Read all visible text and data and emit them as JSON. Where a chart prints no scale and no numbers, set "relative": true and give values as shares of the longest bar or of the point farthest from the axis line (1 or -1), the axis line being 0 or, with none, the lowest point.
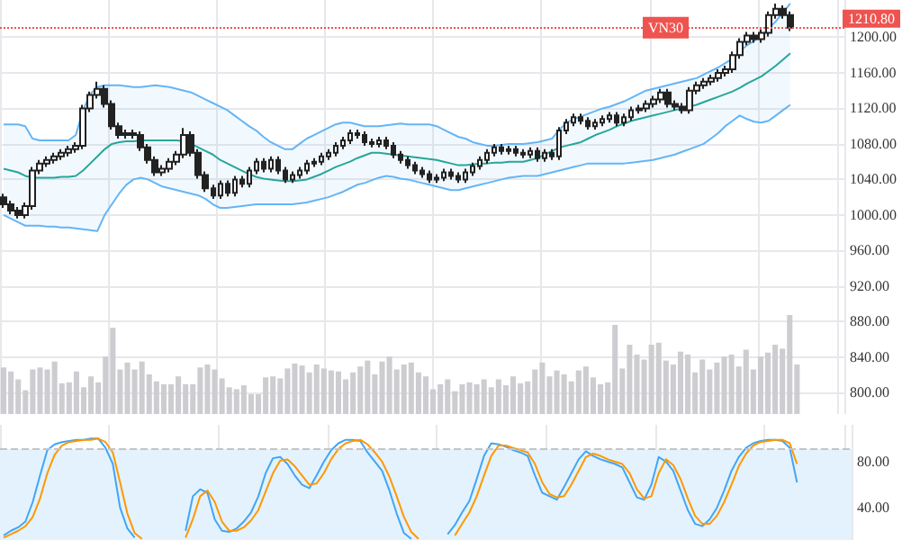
{
  "chart_data": [
    {
      "type": "candlestick",
      "categories": [
        null,
        null,
        null,
        null,
        null,
        null,
        null,
        null,
        null,
        null,
        null,
        null,
        null,
        null,
        null,
        null,
        null,
        null,
        null,
        null,
        null,
        null,
        null,
        null,
        null,
        null,
        null,
        null,
        null,
        null,
        null,
        null,
        null,
        null,
        null,
        null,
        null,
        null,
        null,
        null,
        null,
        null,
        null,
        null,
        null,
        null,
        null,
        null,
        null,
        null,
        null,
        null,
        null,
        null,
        null,
        null,
        null,
        null,
        null,
        null,
        null,
        null,
        null,
        null,
        null,
        null,
        null,
        null,
        null,
        null,
        null,
        null,
        null,
        null,
        null,
        null,
        null,
        null,
        null,
        null,
        null,
        null,
        null,
        null,
        null,
        null,
        null,
        null,
        null,
        null,
        null,
        null,
        null,
        null,
        null,
        null,
        null,
        null,
        null,
        null,
        null,
        null,
        null,
        null,
        null,
        null,
        null,
        null,
        null,
        null
      ],
      "ylim": [
        776,
        1242
      ],
      "yticks": [
        {
          "value": 800,
          "label": "800.00"
        },
        {
          "value": 840,
          "label": "840.00"
        },
        {
          "value": 880,
          "label": "880.00"
        },
        {
          "value": 920,
          "label": "920.00"
        },
        {
          "value": 960,
          "label": "960.00"
        },
        {
          "value": 1000,
          "label": "1000.00"
        },
        {
          "value": 1040,
          "label": "1040.00"
        },
        {
          "value": 1080,
          "label": "1080.00"
        },
        {
          "value": 1120,
          "label": "1120.00"
        },
        {
          "value": 1160,
          "label": "1160.00"
        },
        {
          "value": 1200,
          "label": "1200.00"
        }
      ],
      "grid": true,
      "tick_labels": "y",
      "ref_lines": [
        {
          "axis": "y",
          "value": 1210.8,
          "label": "VN30",
          "color": "#ef5350",
          "line_style": "dotted"
        }
      ],
      "annotations": [
        "1210.80"
      ],
      "series": [
        {
          "type": "candlestick",
          "color": "#222222",
          "ohlc": [
            [
              1020,
              1024,
              1008,
              1012
            ],
            [
              1012,
              1016,
              1001,
              1005
            ],
            [
              1005,
              1009,
              996,
              1000
            ],
            [
              1000,
              1014,
              996,
              1010
            ],
            [
              1010,
              1054,
              1006,
              1050
            ],
            [
              1050,
              1062,
              1046,
              1058
            ],
            [
              1058,
              1066,
              1054,
              1062
            ],
            [
              1062,
              1070,
              1058,
              1066
            ],
            [
              1066,
              1074,
              1062,
              1070
            ],
            [
              1070,
              1078,
              1066,
              1074
            ],
            [
              1074,
              1082,
              1070,
              1078
            ],
            [
              1078,
              1124,
              1074,
              1120
            ],
            [
              1120,
              1139,
              1116,
              1135
            ],
            [
              1135,
              1150,
              1131,
              1142
            ],
            [
              1142,
              1146,
              1121,
              1125
            ],
            [
              1125,
              1129,
              1096,
              1100
            ],
            [
              1100,
              1104,
              1086,
              1090
            ],
            [
              1090,
              1096,
              1086,
              1092
            ],
            [
              1092,
              1096,
              1086,
              1090
            ],
            [
              1090,
              1094,
              1072,
              1076
            ],
            [
              1076,
              1080,
              1058,
              1062
            ],
            [
              1062,
              1066,
              1044,
              1048
            ],
            [
              1048,
              1056,
              1044,
              1052
            ],
            [
              1052,
              1064,
              1048,
              1060
            ],
            [
              1060,
              1072,
              1056,
              1068
            ],
            [
              1068,
              1098,
              1064,
              1090
            ],
            [
              1090,
              1094,
              1066,
              1070
            ],
            [
              1070,
              1074,
              1041,
              1045
            ],
            [
              1045,
              1049,
              1026,
              1030
            ],
            [
              1030,
              1034,
              1018,
              1022
            ],
            [
              1022,
              1039,
              1018,
              1035
            ],
            [
              1035,
              1039,
              1021,
              1025
            ],
            [
              1025,
              1044,
              1021,
              1040
            ],
            [
              1040,
              1044,
              1031,
              1035
            ],
            [
              1035,
              1054,
              1031,
              1050
            ],
            [
              1050,
              1064,
              1046,
              1060
            ],
            [
              1060,
              1064,
              1048,
              1052
            ],
            [
              1052,
              1066,
              1048,
              1062
            ],
            [
              1062,
              1066,
              1046,
              1050
            ],
            [
              1050,
              1054,
              1036,
              1040
            ],
            [
              1040,
              1049,
              1036,
              1045
            ],
            [
              1045,
              1054,
              1041,
              1050
            ],
            [
              1050,
              1062,
              1046,
              1058
            ],
            [
              1058,
              1064,
              1054,
              1060
            ],
            [
              1060,
              1070,
              1056,
              1066
            ],
            [
              1066,
              1074,
              1062,
              1070
            ],
            [
              1070,
              1082,
              1066,
              1078
            ],
            [
              1078,
              1088,
              1074,
              1084
            ],
            [
              1084,
              1096,
              1080,
              1092
            ],
            [
              1092,
              1096,
              1086,
              1090
            ],
            [
              1090,
              1094,
              1078,
              1082
            ],
            [
              1082,
              1086,
              1076,
              1080
            ],
            [
              1080,
              1088,
              1076,
              1084
            ],
            [
              1084,
              1088,
              1074,
              1078
            ],
            [
              1078,
              1082,
              1064,
              1068
            ],
            [
              1068,
              1072,
              1058,
              1062
            ],
            [
              1062,
              1066,
              1052,
              1056
            ],
            [
              1056,
              1060,
              1046,
              1050
            ],
            [
              1050,
              1054,
              1042,
              1046
            ],
            [
              1046,
              1050,
              1036,
              1040
            ],
            [
              1040,
              1046,
              1036,
              1042
            ],
            [
              1042,
              1052,
              1038,
              1048
            ],
            [
              1048,
              1052,
              1040,
              1044
            ],
            [
              1044,
              1048,
              1036,
              1040
            ],
            [
              1040,
              1052,
              1036,
              1048
            ],
            [
              1048,
              1059,
              1044,
              1055
            ],
            [
              1055,
              1066,
              1051,
              1062
            ],
            [
              1062,
              1074,
              1058,
              1070
            ],
            [
              1070,
              1080,
              1066,
              1076
            ],
            [
              1076,
              1080,
              1068,
              1072
            ],
            [
              1072,
              1078,
              1068,
              1074
            ],
            [
              1074,
              1078,
              1066,
              1070
            ],
            [
              1070,
              1074,
              1064,
              1068
            ],
            [
              1068,
              1076,
              1064,
              1072
            ],
            [
              1072,
              1076,
              1060,
              1064
            ],
            [
              1064,
              1074,
              1060,
              1070
            ],
            [
              1070,
              1074,
              1062,
              1066
            ],
            [
              1066,
              1099,
              1062,
              1095
            ],
            [
              1095,
              1108,
              1091,
              1104
            ],
            [
              1104,
              1114,
              1100,
              1110
            ],
            [
              1110,
              1114,
              1102,
              1106
            ],
            [
              1106,
              1110,
              1096,
              1100
            ],
            [
              1100,
              1108,
              1096,
              1104
            ],
            [
              1104,
              1112,
              1100,
              1108
            ],
            [
              1108,
              1116,
              1104,
              1112
            ],
            [
              1112,
              1116,
              1100,
              1104
            ],
            [
              1104,
              1114,
              1100,
              1110
            ],
            [
              1110,
              1122,
              1106,
              1118
            ],
            [
              1118,
              1124,
              1114,
              1120
            ],
            [
              1120,
              1129,
              1116,
              1125
            ],
            [
              1125,
              1134,
              1121,
              1130
            ],
            [
              1130,
              1142,
              1126,
              1138
            ],
            [
              1138,
              1142,
              1121,
              1125
            ],
            [
              1125,
              1129,
              1118,
              1122
            ],
            [
              1122,
              1126,
              1114,
              1118
            ],
            [
              1118,
              1144,
              1114,
              1140
            ],
            [
              1140,
              1150,
              1136,
              1146
            ],
            [
              1146,
              1154,
              1142,
              1150
            ],
            [
              1150,
              1158,
              1146,
              1154
            ],
            [
              1154,
              1164,
              1150,
              1160
            ],
            [
              1160,
              1168,
              1156,
              1164
            ],
            [
              1164,
              1184,
              1160,
              1180
            ],
            [
              1180,
              1199,
              1176,
              1195
            ],
            [
              1195,
              1206,
              1191,
              1202
            ],
            [
              1202,
              1206,
              1194,
              1198
            ],
            [
              1198,
              1209,
              1194,
              1205
            ],
            [
              1205,
              1229,
              1201,
              1225
            ],
            [
              1225,
              1238,
              1221,
              1232
            ],
            [
              1232,
              1236,
              1221,
              1225
            ],
            [
              1225,
              1229,
              1207,
              1210.8
            ]
          ]
        },
        {
          "type": "line",
          "color": "#26a69a",
          "values": [
            1052,
            1050,
            1048,
            1044,
            1042,
            1042,
            1042,
            1042,
            1043,
            1043,
            1044,
            1050,
            1058,
            1066,
            1074,
            1080,
            1082,
            1083,
            1083,
            1084,
            1084,
            1084,
            1084,
            1084,
            1084,
            1083,
            1080,
            1076,
            1072,
            1068,
            1062,
            1058,
            1054,
            1050,
            1046,
            1043,
            1041,
            1040,
            1039,
            1038,
            1038,
            1039,
            1040,
            1043,
            1046,
            1050,
            1054,
            1057,
            1060,
            1064,
            1067,
            1070,
            1070,
            1069,
            1068,
            1067,
            1066,
            1065,
            1064,
            1063,
            1062,
            1060,
            1058,
            1056,
            1056,
            1057,
            1058,
            1058,
            1059,
            1059,
            1060,
            1060,
            1060,
            1062,
            1064,
            1068,
            1072,
            1076,
            1078,
            1080,
            1082,
            1086,
            1090,
            1093,
            1096,
            1100,
            1103,
            1106,
            1108,
            1110,
            1112,
            1114,
            1116,
            1118,
            1120,
            1122,
            1124,
            1127,
            1130,
            1133,
            1136,
            1139,
            1143,
            1148,
            1152,
            1156,
            1162,
            1168,
            1175,
            1182
          ],
          "upper": [
            1102,
            1102,
            1102,
            1100,
            1086,
            1084,
            1084,
            1084,
            1084,
            1084,
            1090,
            1118,
            1136,
            1144,
            1146,
            1146,
            1146,
            1145,
            1144,
            1144,
            1145,
            1146,
            1145,
            1144,
            1142,
            1140,
            1138,
            1134,
            1130,
            1126,
            1122,
            1118,
            1112,
            1106,
            1100,
            1095,
            1088,
            1082,
            1078,
            1074,
            1074,
            1080,
            1086,
            1090,
            1094,
            1098,
            1102,
            1104,
            1104,
            1102,
            1100,
            1100,
            1100,
            1101,
            1102,
            1103,
            1102,
            1102,
            1102,
            1102,
            1100,
            1096,
            1092,
            1088,
            1086,
            1082,
            1080,
            1078,
            1078,
            1079,
            1080,
            1080,
            1080,
            1081,
            1082,
            1084,
            1086,
            1096,
            1104,
            1108,
            1111,
            1114,
            1117,
            1120,
            1122,
            1125,
            1128,
            1132,
            1136,
            1140,
            1142,
            1144,
            1146,
            1148,
            1150,
            1152,
            1154,
            1158,
            1162,
            1166,
            1171,
            1176,
            1184,
            1191,
            1196,
            1202,
            1210,
            1218,
            1228,
            1238
          ],
          "lower": [
            1000,
            996,
            992,
            988,
            988,
            988,
            987,
            987,
            986,
            986,
            985,
            984,
            983,
            982,
            1000,
            1012,
            1024,
            1034,
            1040,
            1042,
            1040,
            1036,
            1032,
            1030,
            1028,
            1026,
            1024,
            1022,
            1018,
            1012,
            1008,
            1008,
            1009,
            1010,
            1011,
            1012,
            1012,
            1012,
            1012,
            1012,
            1012,
            1013,
            1014,
            1016,
            1018,
            1020,
            1023,
            1026,
            1030,
            1034,
            1036,
            1039,
            1042,
            1044,
            1043,
            1041,
            1040,
            1038,
            1036,
            1034,
            1032,
            1030,
            1028,
            1028,
            1030,
            1032,
            1034,
            1036,
            1038,
            1040,
            1042,
            1043,
            1044,
            1044,
            1044,
            1046,
            1048,
            1050,
            1052,
            1054,
            1056,
            1058,
            1058,
            1058,
            1058,
            1058,
            1058,
            1059,
            1060,
            1061,
            1062,
            1064,
            1066,
            1068,
            1071,
            1074,
            1077,
            1080,
            1086,
            1092,
            1100,
            1106,
            1112,
            1108,
            1105,
            1104,
            1106,
            1112,
            1118,
            1124
          ]
        },
        {
          "type": "line",
          "color": "#64b5f6",
          "values": [
            1102,
            1102,
            1102,
            1100,
            1086,
            1084,
            1084,
            1084,
            1084,
            1084,
            1090,
            1118,
            1136,
            1144,
            1146,
            1146,
            1146,
            1145,
            1144,
            1144,
            1145,
            1146,
            1145,
            1144,
            1142,
            1140,
            1138,
            1134,
            1130,
            1126,
            1122,
            1118,
            1112,
            1106,
            1100,
            1095,
            1088,
            1082,
            1078,
            1074,
            1074,
            1080,
            1086,
            1090,
            1094,
            1098,
            1102,
            1104,
            1104,
            1102,
            1100,
            1100,
            1100,
            1101,
            1102,
            1103,
            1102,
            1102,
            1102,
            1102,
            1100,
            1096,
            1092,
            1088,
            1086,
            1082,
            1080,
            1078,
            1078,
            1079,
            1080,
            1080,
            1080,
            1081,
            1082,
            1084,
            1086,
            1096,
            1104,
            1108,
            1111,
            1114,
            1117,
            1120,
            1122,
            1125,
            1128,
            1132,
            1136,
            1140,
            1142,
            1144,
            1146,
            1148,
            1150,
            1152,
            1154,
            1158,
            1162,
            1166,
            1171,
            1176,
            1184,
            1191,
            1196,
            1202,
            1210,
            1218,
            1228,
            1238
          ]
        },
        {
          "type": "line",
          "color": "#64b5f6",
          "values": [
            1000,
            996,
            992,
            988,
            988,
            988,
            987,
            987,
            986,
            986,
            985,
            984,
            983,
            982,
            1000,
            1012,
            1024,
            1034,
            1040,
            1042,
            1040,
            1036,
            1032,
            1030,
            1028,
            1026,
            1024,
            1022,
            1018,
            1012,
            1008,
            1008,
            1009,
            1010,
            1011,
            1012,
            1012,
            1012,
            1012,
            1012,
            1012,
            1013,
            1014,
            1016,
            1018,
            1020,
            1023,
            1026,
            1030,
            1034,
            1036,
            1039,
            1042,
            1044,
            1043,
            1041,
            1040,
            1038,
            1036,
            1034,
            1032,
            1030,
            1028,
            1028,
            1030,
            1032,
            1034,
            1036,
            1038,
            1040,
            1042,
            1043,
            1044,
            1044,
            1044,
            1046,
            1048,
            1050,
            1052,
            1054,
            1056,
            1058,
            1058,
            1058,
            1058,
            1058,
            1058,
            1059,
            1060,
            1061,
            1062,
            1064,
            1066,
            1068,
            1071,
            1074,
            1077,
            1080,
            1086,
            1092,
            1100,
            1106,
            1112,
            1108,
            1105,
            1104,
            1106,
            1112,
            1118,
            1124
          ]
        }
      ]
    },
    {
      "type": "bar",
      "relative": true,
      "tick_labels": false,
      "categories": [
        null,
        null,
        null,
        null,
        null,
        null,
        null,
        null,
        null,
        null,
        null,
        null,
        null,
        null,
        null,
        null,
        null,
        null,
        null,
        null,
        null,
        null,
        null,
        null,
        null,
        null,
        null,
        null,
        null,
        null,
        null,
        null,
        null,
        null,
        null,
        null,
        null,
        null,
        null,
        null,
        null,
        null,
        null,
        null,
        null,
        null,
        null,
        null,
        null,
        null,
        null,
        null,
        null,
        null,
        null,
        null,
        null,
        null,
        null,
        null,
        null,
        null,
        null,
        null,
        null,
        null,
        null,
        null,
        null,
        null,
        null,
        null,
        null,
        null,
        null,
        null,
        null,
        null,
        null,
        null,
        null,
        null,
        null,
        null,
        null,
        null,
        null,
        null,
        null,
        null,
        null,
        null,
        null,
        null,
        null,
        null,
        null,
        null,
        null,
        null,
        null,
        null,
        null,
        null,
        null,
        null,
        null,
        null,
        null,
        null
      ],
      "series": [
        {
          "color": "#cdcdd1",
          "values": [
            0.47,
            0.43,
            0.35,
            0.24,
            0.45,
            0.47,
            0.45,
            0.53,
            0.31,
            0.32,
            0.43,
            0.27,
            0.38,
            0.32,
            0.58,
            0.87,
            0.45,
            0.52,
            0.45,
            0.53,
            0.4,
            0.33,
            0.3,
            0.3,
            0.38,
            0.3,
            0.3,
            0.47,
            0.5,
            0.45,
            0.36,
            0.27,
            0.25,
            0.29,
            0.2,
            0.2,
            0.37,
            0.38,
            0.36,
            0.46,
            0.51,
            0.49,
            0.42,
            0.5,
            0.46,
            0.44,
            0.43,
            0.35,
            0.42,
            0.48,
            0.54,
            0.4,
            0.53,
            0.58,
            0.45,
            0.5,
            0.52,
            0.42,
            0.38,
            0.25,
            0.3,
            0.35,
            0.23,
            0.3,
            0.32,
            0.3,
            0.35,
            0.27,
            0.35,
            0.29,
            0.38,
            0.31,
            0.33,
            0.45,
            0.52,
            0.38,
            0.44,
            0.4,
            0.33,
            0.44,
            0.48,
            0.37,
            0.3,
            0.32,
            0.9,
            0.46,
            0.7,
            0.6,
            0.55,
            0.7,
            0.72,
            0.54,
            0.5,
            0.63,
            0.6,
            0.42,
            0.55,
            0.45,
            0.52,
            0.58,
            0.6,
            0.48,
            0.65,
            0.45,
            0.58,
            0.62,
            0.7,
            0.66,
            1.0,
            0.5
          ]
        }
      ]
    },
    {
      "type": "line",
      "marker": "none",
      "grid": true,
      "tick_labels": "y",
      "categories": [
        null,
        null,
        null,
        null,
        null,
        null,
        null,
        null,
        null,
        null,
        null,
        null,
        null,
        null,
        null,
        null,
        null,
        null,
        null,
        null,
        null,
        null,
        null,
        null,
        null,
        null,
        null,
        null,
        null,
        null,
        null,
        null,
        null,
        null,
        null,
        null,
        null,
        null,
        null,
        null,
        null,
        null,
        null,
        null,
        null,
        null,
        null,
        null,
        null,
        null,
        null,
        null,
        null,
        null,
        null,
        null,
        null,
        null,
        null,
        null,
        null,
        null,
        null,
        null,
        null,
        null,
        null,
        null,
        null,
        null,
        null,
        null,
        null,
        null,
        null,
        null,
        null,
        null,
        null,
        null,
        null,
        null,
        null,
        null,
        null,
        null,
        null,
        null,
        null,
        null,
        null,
        null,
        null,
        null,
        null,
        null,
        null,
        null,
        null,
        null,
        null,
        null,
        null,
        null,
        null,
        null,
        null,
        null,
        null,
        null
      ],
      "ylim": [
        12,
        112
      ],
      "yticks": [
        {
          "value": 40,
          "label": "40.00"
        },
        {
          "value": 80,
          "label": "80.00"
        }
      ],
      "ref_lines": [
        {
          "axis": "y",
          "value": 91,
          "color": "#c4c4c4",
          "line_style": "dashed"
        }
      ],
      "bands": [
        {
          "axis": "y",
          "from": 12,
          "to": 91,
          "color": "#e3f2fd"
        }
      ],
      "series": [
        {
          "color": "#42a5f5",
          "values": [
            16,
            20,
            23,
            28,
            45,
            68,
            90,
            95,
            97,
            98,
            99,
            99,
            100,
            100,
            92,
            78,
            40,
            22,
            14,
            null,
            null,
            null,
            null,
            null,
            null,
            20,
            50,
            56,
            53,
            30,
            20,
            19,
            22,
            28,
            36,
            50,
            70,
            83,
            84,
            78,
            68,
            60,
            57,
            68,
            80,
            90,
            96,
            99,
            99,
            98,
            88,
            80,
            72,
            55,
            35,
            18,
            13,
            null,
            null,
            null,
            null,
            17,
            25,
            36,
            46,
            65,
            85,
            96,
            95,
            93,
            90,
            88,
            85,
            68,
            53,
            50,
            47,
            58,
            70,
            82,
            89,
            85,
            82,
            80,
            78,
            75,
            62,
            49,
            47,
            60,
            84,
            80,
            72,
            55,
            38,
            26,
            24,
            30,
            40,
            55,
            72,
            84,
            92,
            96,
            98,
            99,
            99,
            98,
            92,
            62
          ]
        },
        {
          "color": "#ff9800",
          "values": [
            14,
            17,
            20,
            24,
            32,
            48,
            70,
            86,
            94,
            97,
            98,
            99,
            99,
            100,
            97,
            88,
            62,
            35,
            18,
            13,
            null,
            null,
            null,
            null,
            null,
            14,
            30,
            50,
            55,
            45,
            28,
            20,
            20,
            23,
            29,
            38,
            54,
            70,
            81,
            82,
            76,
            68,
            60,
            61,
            70,
            82,
            91,
            96,
            98,
            99,
            95,
            88,
            80,
            67,
            50,
            32,
            19,
            13,
            null,
            null,
            null,
            null,
            16,
            26,
            36,
            50,
            68,
            85,
            94,
            94,
            92,
            90,
            88,
            78,
            62,
            52,
            49,
            50,
            60,
            72,
            84,
            87,
            85,
            82,
            80,
            78,
            70,
            56,
            48,
            50,
            70,
            82,
            77,
            65,
            48,
            33,
            26,
            26,
            33,
            45,
            60,
            76,
            87,
            94,
            97,
            98,
            99,
            99,
            96,
            78
          ]
        }
      ]
    }
  ]
}
